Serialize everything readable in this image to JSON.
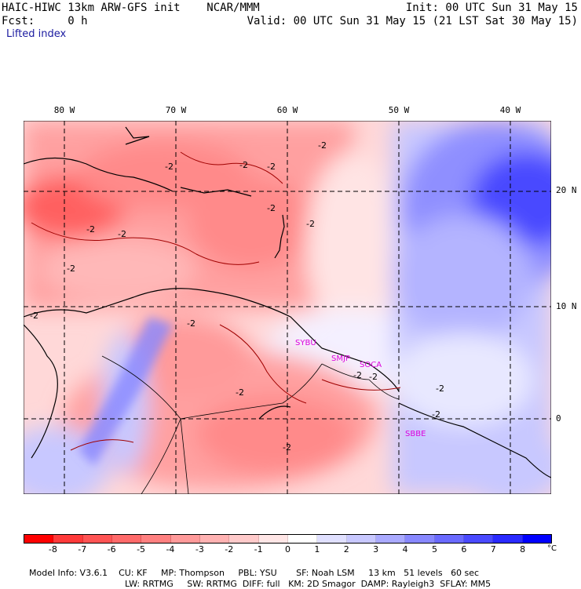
{
  "header": {
    "model": "HAIC-HIWC 13km ARW-GFS init",
    "org": "NCAR/MMM",
    "init": "Init: 00 UTC Sun 31 May 15",
    "fcst": "Fcst:     0 h",
    "valid": "Valid: 00 UTC Sun 31 May 15 (21 LST Sat 30 May 15)",
    "variable": "Lifted index"
  },
  "map": {
    "lon_labels": [
      "80 W",
      "70 W",
      "60 W",
      "50 W",
      "40 W"
    ],
    "lat_labels": [
      "20 N",
      "10 N",
      "0"
    ],
    "contour_labels": [
      "-2",
      "-2",
      "-2",
      "-2",
      "-2",
      "-2",
      "-2",
      "-2",
      "-2",
      "-2",
      "-2",
      "-2",
      "-2",
      "-2",
      "-2",
      "-2",
      "-2"
    ],
    "stations": [
      "SYBU",
      "SMJP",
      "SOCA",
      "SBBE"
    ],
    "colors": {
      "negative_max": "#ff2a2a",
      "positive_max": "#0022dd",
      "station": "#dd00dd"
    }
  },
  "colorbar": {
    "ticks": [
      "-8",
      "-7",
      "-6",
      "-5",
      "-4",
      "-3",
      "-2",
      "-1",
      "0",
      "1",
      "2",
      "3",
      "4",
      "5",
      "6",
      "7",
      "8"
    ],
    "unit": "°C",
    "colors": [
      "#ff0000",
      "#ff3a3a",
      "#ff5454",
      "#ff6a6a",
      "#ff8080",
      "#ff9a9a",
      "#ffb2b2",
      "#ffcaca",
      "#ffe6e6",
      "#ffffff",
      "#e0e0ff",
      "#c8c8ff",
      "#aaaaff",
      "#8888ff",
      "#6a6aff",
      "#4a4aff",
      "#2a2aff",
      "#0000ff"
    ]
  },
  "footer": {
    "line1": [
      "Model Info: V3.6.1",
      "CU: KF",
      "MP: Thompson",
      "PBL: YSU",
      "SF: Noah LSM",
      "13 km",
      "51 levels",
      "60 sec"
    ],
    "line2": [
      "LW: RRTMG",
      "SW: RRTMG",
      "DIFF: full",
      "KM: 2D Smagor",
      "DAMP: Rayleigh3",
      "SFLAY: MM5"
    ]
  }
}
